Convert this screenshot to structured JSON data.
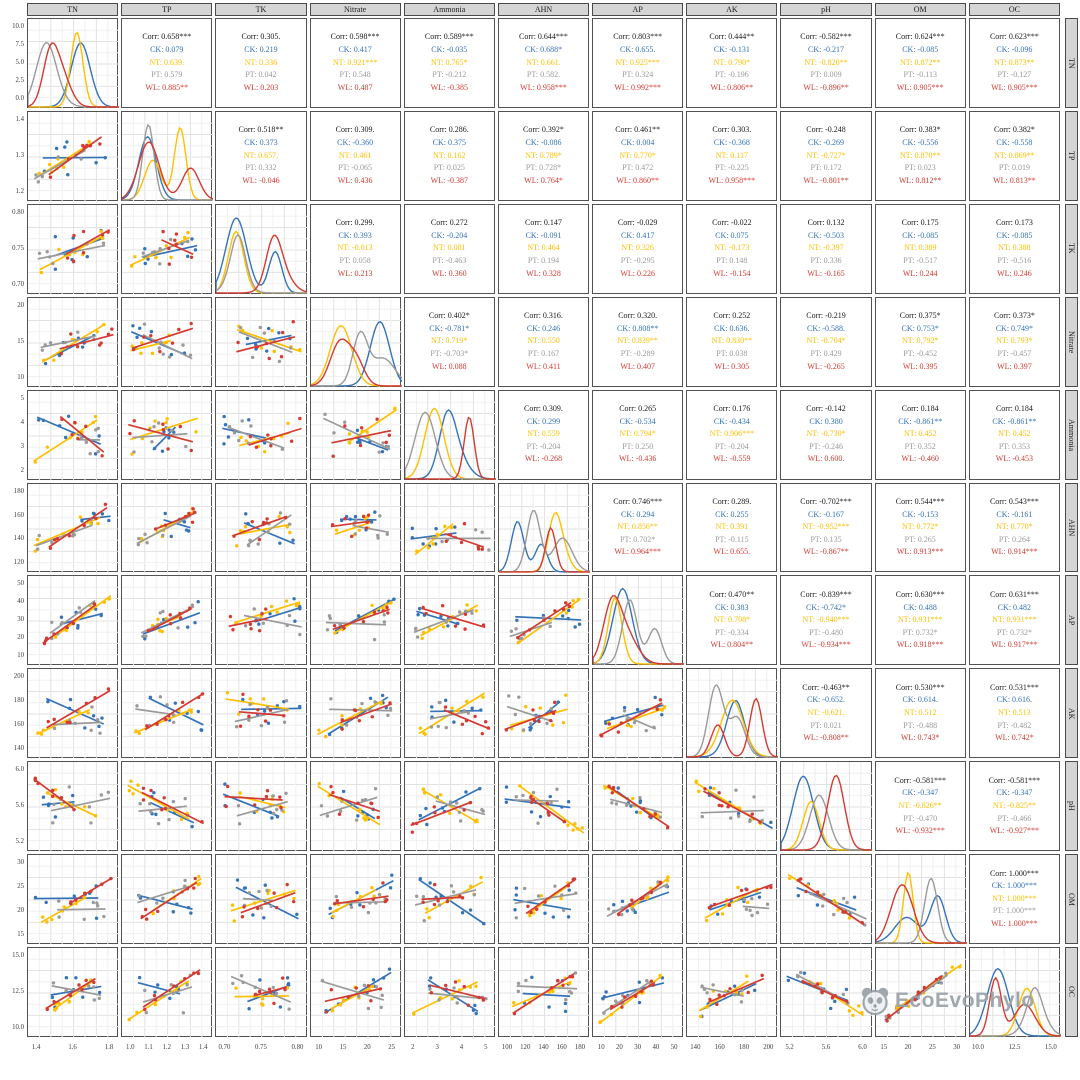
{
  "watermark": {
    "text": "EcoEvoPhylo",
    "icon": "panda-face-icon",
    "color": "#98a1a8"
  },
  "chart_data": {
    "type": "scatter",
    "subtype": "scatterplot-matrix-ggpairs",
    "title": "",
    "variables": [
      "TN",
      "TP",
      "TK",
      "Nitrate",
      "Ammonia",
      "AHN",
      "AP",
      "AK",
      "pH",
      "OM",
      "OC"
    ],
    "groups": [
      {
        "name": "CK",
        "color": "#3573B9"
      },
      {
        "name": "NT",
        "color": "#FFBF00"
      },
      {
        "name": "PT",
        "color": "#9A9A9A"
      },
      {
        "name": "WL",
        "color": "#D43A31"
      }
    ],
    "overall_label": "Corr",
    "overall_color": "#1a1a1a",
    "layout": {
      "diagonal": "density",
      "upper": "correlation-text",
      "lower": "scatter-with-regression",
      "grid": true,
      "points_per_group": 7,
      "strip_bg": "#d5d5d5",
      "panel_border": "#525252",
      "grid_major": "#e2e2e2",
      "grid_minor": "#f0f0f0"
    },
    "x_ticks": {
      "TN": [
        "1.4",
        "1.6",
        "1.8"
      ],
      "TP": [
        "1.0",
        "1.1",
        "1.2",
        "1.3",
        "1.4"
      ],
      "TK": [
        "0.70",
        "0.75",
        "0.80"
      ],
      "Nitrate": [
        "10",
        "15",
        "20",
        "25"
      ],
      "Ammonia": [
        "2",
        "3",
        "4",
        "5"
      ],
      "AHN": [
        "100",
        "120",
        "140",
        "160",
        "180"
      ],
      "AP": [
        "10",
        "20",
        "30",
        "40",
        "50"
      ],
      "AK": [
        "140",
        "160",
        "180",
        "200"
      ],
      "pH": [
        "5.2",
        "5.6",
        "6.0"
      ],
      "OM": [
        "15",
        "20",
        "25",
        "30"
      ],
      "OC": [
        "10.0",
        "12.5",
        "15.0"
      ]
    },
    "y_ticks": {
      "TN": [
        "10.0",
        "7.5",
        "5.0",
        "2.5",
        "0.0"
      ],
      "TP": [
        "1.4",
        "1.3",
        "1.2"
      ],
      "TK": [
        "0.80",
        "0.75",
        "0.70"
      ],
      "Nitrate": [
        "20",
        "15",
        "10"
      ],
      "Ammonia": [
        "5",
        "4",
        "3",
        "2"
      ],
      "AHN": [
        "180",
        "160",
        "140",
        "120"
      ],
      "AP": [
        "50",
        "40",
        "30",
        "20",
        "10"
      ],
      "AK": [
        "200",
        "180",
        "160",
        "140"
      ],
      "pH": [
        "6.0",
        "5.6",
        "5.2"
      ],
      "OM": [
        "30",
        "25",
        "20",
        "15"
      ],
      "OC": [
        "15.0",
        "12.5",
        "10.0"
      ]
    },
    "correlations": {
      "TN|TP": {
        "Corr": "0.658***",
        "CK": "0.079",
        "NT": "0.639.",
        "PT": "0.579",
        "WL": "0.885**"
      },
      "TN|TK": {
        "Corr": "0.305.",
        "CK": "0.219",
        "NT": "0.336",
        "PT": "0.042",
        "WL": "0.203"
      },
      "TN|Nitrate": {
        "Corr": "0.598***",
        "CK": "0.417",
        "NT": "0.921***",
        "PT": "0.548",
        "WL": "0.487"
      },
      "TN|Ammonia": {
        "Corr": "0.589***",
        "CK": "-0.035",
        "NT": "0.765*",
        "PT": "-0.212",
        "WL": "-0.385"
      },
      "TN|AHN": {
        "Corr": "0.644***",
        "CK": "0.688*",
        "NT": "0.661.",
        "PT": "0.582.",
        "WL": "0.958***"
      },
      "TN|AP": {
        "Corr": "0.803***",
        "CK": "0.655.",
        "NT": "0.925***",
        "PT": "0.324",
        "WL": "0.992***"
      },
      "TN|AK": {
        "Corr": "0.444**",
        "CK": "-0.131",
        "NT": "0.790*",
        "PT": "-0.196",
        "WL": "0.806**"
      },
      "TN|pH": {
        "Corr": "-0.582***",
        "CK": "-0.217",
        "NT": "-0.820**",
        "PT": "0.009",
        "WL": "-0.896**"
      },
      "TN|OM": {
        "Corr": "0.624***",
        "CK": "-0.085",
        "NT": "0.872**",
        "PT": "-0.113",
        "WL": "0.905***"
      },
      "TN|OC": {
        "Corr": "0.623***",
        "CK": "-0.096",
        "NT": "0.873**",
        "PT": "-0.127",
        "WL": "0.905***"
      },
      "TP|TK": {
        "Corr": "0.518**",
        "CK": "0.373",
        "NT": "0.657.",
        "PT": "0.332",
        "WL": "-0.046"
      },
      "TP|Nitrate": {
        "Corr": "0.309.",
        "CK": "-0.360",
        "NT": "0.461",
        "PT": "-0.065",
        "WL": "0.436"
      },
      "TP|Ammonia": {
        "Corr": "0.286.",
        "CK": "0.375",
        "NT": "0.162",
        "PT": "0.025",
        "WL": "-0.387"
      },
      "TP|AHN": {
        "Corr": "0.392*",
        "CK": "-0.086",
        "NT": "0.789*",
        "PT": "0.728*",
        "WL": "0.764*"
      },
      "TP|AP": {
        "Corr": "0.461**",
        "CK": "0.004",
        "NT": "0.770*",
        "PT": "0.472",
        "WL": "0.860**"
      },
      "TP|AK": {
        "Corr": "0.303.",
        "CK": "-0.368",
        "NT": "0.117",
        "PT": "-0.225",
        "WL": "0.958***"
      },
      "TP|pH": {
        "Corr": "-0.248",
        "CK": "-0.269",
        "NT": "-0.727*",
        "PT": "0.172",
        "WL": "-0.801**"
      },
      "TP|OM": {
        "Corr": "0.383*",
        "CK": "-0.556",
        "NT": "0.870**",
        "PT": "0.023",
        "WL": "0.812**"
      },
      "TP|OC": {
        "Corr": "0.382*",
        "CK": "-0.558",
        "NT": "0.869**",
        "PT": "0.019",
        "WL": "0.813**"
      },
      "TK|Nitrate": {
        "Corr": "0.299.",
        "CK": "0.393",
        "NT": "-0.013",
        "PT": "0.058",
        "WL": "0.213"
      },
      "TK|Ammonia": {
        "Corr": "0.272",
        "CK": "-0.204",
        "NT": "0.081",
        "PT": "-0.463",
        "WL": "0.360"
      },
      "TK|AHN": {
        "Corr": "0.147",
        "CK": "-0.091",
        "NT": "0.464",
        "PT": "0.194",
        "WL": "0.328"
      },
      "TK|AP": {
        "Corr": "-0.029",
        "CK": "0.417",
        "NT": "0.326",
        "PT": "-0.295",
        "WL": "0.226"
      },
      "TK|AK": {
        "Corr": "-0.022",
        "CK": "0.075",
        "NT": "-0.173",
        "PT": "0.148",
        "WL": "-0.154"
      },
      "TK|pH": {
        "Corr": "0.132",
        "CK": "-0.503",
        "NT": "-0.397",
        "PT": "0.336",
        "WL": "-0.165"
      },
      "TK|OM": {
        "Corr": "0.175",
        "CK": "-0.085",
        "NT": "0.389",
        "PT": "-0.517",
        "WL": "0.244"
      },
      "TK|OC": {
        "Corr": "0.173",
        "CK": "-0.085",
        "NT": "0.388",
        "PT": "-0.516",
        "WL": "0.246"
      },
      "Nitrate|Ammonia": {
        "Corr": "0.402*",
        "CK": "-0.781*",
        "NT": "0.719*",
        "PT": "-0.703*",
        "WL": "0.088"
      },
      "Nitrate|AHN": {
        "Corr": "0.316.",
        "CK": "0.246",
        "NT": "0.550",
        "PT": "0.167",
        "WL": "0.411"
      },
      "Nitrate|AP": {
        "Corr": "0.320.",
        "CK": "0.808**",
        "NT": "0.839**",
        "PT": "-0.289",
        "WL": "0.407"
      },
      "Nitrate|AK": {
        "Corr": "0.252",
        "CK": "0.636.",
        "NT": "0.830**",
        "PT": "0.038",
        "WL": "0.305"
      },
      "Nitrate|pH": {
        "Corr": "-0.219",
        "CK": "-0.588.",
        "NT": "-0.704*",
        "PT": "0.429",
        "WL": "-0.265"
      },
      "Nitrate|OM": {
        "Corr": "0.375*",
        "CK": "0.753*",
        "NT": "0.792*",
        "PT": "-0.452",
        "WL": "0.395"
      },
      "Nitrate|OC": {
        "Corr": "0.373*",
        "CK": "0.749*",
        "NT": "0.793*",
        "PT": "-0.457",
        "WL": "0.397"
      },
      "Ammonia|AHN": {
        "Corr": "0.309.",
        "CK": "0.299",
        "NT": "0.559",
        "PT": "-0.204",
        "WL": "-0.268"
      },
      "Ammonia|AP": {
        "Corr": "0.265",
        "CK": "-0.534",
        "NT": "0.794*",
        "PT": "0.250",
        "WL": "-0.436"
      },
      "Ammonia|AK": {
        "Corr": "0.176",
        "CK": "-0.434",
        "NT": "0.906***",
        "PT": "-0.204",
        "WL": "-0.559"
      },
      "Ammonia|pH": {
        "Corr": "-0.142",
        "CK": "0.380",
        "NT": "-0.730*",
        "PT": "-0.246",
        "WL": "0.600."
      },
      "Ammonia|OM": {
        "Corr": "0.184",
        "CK": "-0.861**",
        "NT": "0.452",
        "PT": "0.352",
        "WL": "-0.460"
      },
      "Ammonia|OC": {
        "Corr": "0.184",
        "CK": "-0.861**",
        "NT": "0.452",
        "PT": "0.353",
        "WL": "-0.453"
      },
      "AHN|AP": {
        "Corr": "0.746***",
        "CK": "0.294",
        "NT": "0.856**",
        "PT": "0.702*",
        "WL": "0.964***"
      },
      "AHN|AK": {
        "Corr": "0.289.",
        "CK": "0.255",
        "NT": "0.391",
        "PT": "-0.115",
        "WL": "0.655."
      },
      "AHN|pH": {
        "Corr": "-0.702***",
        "CK": "-0.167",
        "NT": "-0.952***",
        "PT": "0.135",
        "WL": "-0.867**"
      },
      "AHN|OM": {
        "Corr": "0.544***",
        "CK": "-0.153",
        "NT": "0.772*",
        "PT": "0.265",
        "WL": "0.913***"
      },
      "AHN|OC": {
        "Corr": "0.543***",
        "CK": "-0.161",
        "NT": "0.770*",
        "PT": "0.264",
        "WL": "0.914***"
      },
      "AP|AK": {
        "Corr": "0.470**",
        "CK": "0.383",
        "NT": "0.708*",
        "PT": "-0.334",
        "WL": "0.804**"
      },
      "AP|pH": {
        "Corr": "-0.839***",
        "CK": "-0.742*",
        "NT": "-0.940***",
        "PT": "-0.480",
        "WL": "-0.934***"
      },
      "AP|OM": {
        "Corr": "0.630***",
        "CK": "0.488",
        "NT": "0.931***",
        "PT": "0.732*",
        "WL": "0.918***"
      },
      "AP|OC": {
        "Corr": "0.631***",
        "CK": "0.482",
        "NT": "0.931***",
        "PT": "0.732*",
        "WL": "0.917***"
      },
      "AK|pH": {
        "Corr": "-0.463**",
        "CK": "-0.652.",
        "NT": "-0.621.",
        "PT": "0.021",
        "WL": "-0.808**"
      },
      "AK|OM": {
        "Corr": "0.530***",
        "CK": "0.614.",
        "NT": "0.512",
        "PT": "-0.488",
        "WL": "0.743*"
      },
      "AK|OC": {
        "Corr": "0.531***",
        "CK": "0.616.",
        "NT": "0.513",
        "PT": "-0.482",
        "WL": "0.742*"
      },
      "pH|OM": {
        "Corr": "-0.581***",
        "CK": "-0.347",
        "NT": "-0.826**",
        "PT": "-0.470",
        "WL": "-0.932***"
      },
      "pH|OC": {
        "Corr": "-0.581***",
        "CK": "-0.347",
        "NT": "-0.825**",
        "PT": "-0.466",
        "WL": "-0.927***"
      },
      "OM|OC": {
        "Corr": "1.000***",
        "CK": "1.000***",
        "NT": "1.000***",
        "PT": "1.000***",
        "WL": "1.000***"
      }
    }
  }
}
